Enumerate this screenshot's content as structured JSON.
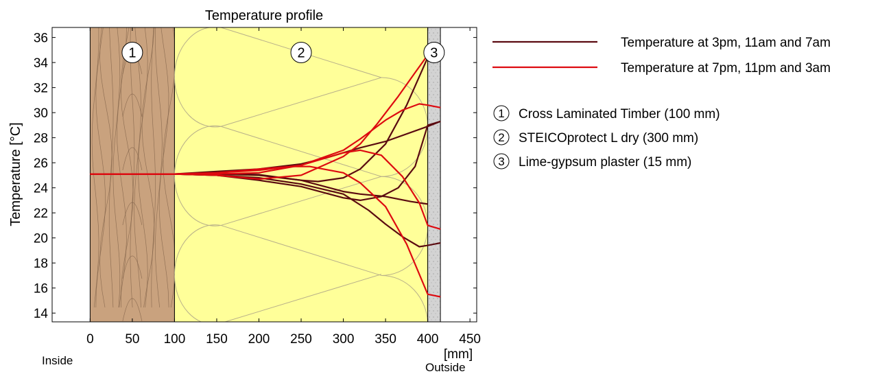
{
  "colors": {
    "timber": "#c9a27e",
    "timber_grain": "#7a5c44",
    "insulation": "#ffff99",
    "insulation_pattern": "#b8b08a",
    "plaster": "#d3d3d3",
    "series_dark": "#5a0a10",
    "series_red": "#dd0a10"
  },
  "chart_data": {
    "type": "line",
    "title": "Temperature profile",
    "ylabel": "Temperature  [°C]",
    "x_unit_label": "[mm]",
    "inside_label": "Inside",
    "outside_label": "Outside",
    "xlim": [
      -45,
      458
    ],
    "ylim": [
      13.3,
      36.8
    ],
    "xticks": [
      0,
      50,
      100,
      150,
      200,
      250,
      300,
      350,
      400,
      450
    ],
    "yticks": [
      14,
      16,
      18,
      20,
      22,
      24,
      26,
      28,
      30,
      32,
      34,
      36
    ],
    "layers": [
      {
        "num": "1",
        "name": "Cross Laminated Timber (100 mm)",
        "from": 0,
        "to": 100,
        "fill": "timber",
        "label_x": 50,
        "label_y": 34.8
      },
      {
        "num": "2",
        "name": "STEICOprotect L dry (300 mm)",
        "from": 100,
        "to": 400,
        "fill": "insulation",
        "label_x": 250,
        "label_y": 34.8
      },
      {
        "num": "3",
        "name": "Lime-gypsum plaster (15 mm)",
        "from": 400,
        "to": 415,
        "fill": "plaster",
        "label_x": 407.5,
        "label_y": 34.8
      }
    ],
    "legend": [
      {
        "label": "Temperature at 3pm, 11am and 7am",
        "color": "series_dark"
      },
      {
        "label": "Temperature at 7pm, 11pm and 3am",
        "color": "series_red"
      }
    ],
    "series": [
      {
        "group": 0,
        "points": [
          [
            0,
            25.1
          ],
          [
            100,
            25.1
          ],
          [
            150,
            25.15
          ],
          [
            200,
            25.05
          ],
          [
            250,
            24.6
          ],
          [
            300,
            23.7
          ],
          [
            320,
            23.5
          ],
          [
            350,
            23.3
          ],
          [
            380,
            22.9
          ],
          [
            400,
            22.7
          ]
        ]
      },
      {
        "group": 0,
        "points": [
          [
            0,
            25.1
          ],
          [
            100,
            25.1
          ],
          [
            150,
            25.3
          ],
          [
            200,
            25.5
          ],
          [
            250,
            25.9
          ],
          [
            280,
            26.4
          ],
          [
            300,
            26.8
          ],
          [
            320,
            27.2
          ],
          [
            350,
            27.7
          ],
          [
            400,
            28.9
          ],
          [
            415,
            29.3
          ]
        ]
      },
      {
        "group": 0,
        "points": [
          [
            0,
            25.1
          ],
          [
            100,
            25.1
          ],
          [
            150,
            25.0
          ],
          [
            200,
            24.8
          ],
          [
            250,
            24.3
          ],
          [
            300,
            23.5
          ],
          [
            330,
            22.2
          ],
          [
            350,
            21.1
          ],
          [
            370,
            20.1
          ],
          [
            390,
            19.3
          ],
          [
            400,
            19.4
          ],
          [
            415,
            19.6
          ]
        ]
      },
      {
        "group": 0,
        "points": [
          [
            0,
            25.1
          ],
          [
            100,
            25.1
          ],
          [
            150,
            25.0
          ],
          [
            200,
            24.6
          ],
          [
            250,
            24.1
          ],
          [
            300,
            23.2
          ],
          [
            320,
            23.0
          ],
          [
            345,
            23.3
          ],
          [
            365,
            24.0
          ],
          [
            385,
            25.7
          ],
          [
            400,
            29.0
          ],
          [
            415,
            29.3
          ]
        ]
      },
      {
        "group": 0,
        "points": [
          [
            0,
            25.1
          ],
          [
            100,
            25.1
          ],
          [
            150,
            25.1
          ],
          [
            200,
            25.0
          ],
          [
            250,
            24.6
          ],
          [
            270,
            24.5
          ],
          [
            300,
            24.8
          ],
          [
            320,
            25.5
          ],
          [
            350,
            27.5
          ],
          [
            375,
            30.6
          ],
          [
            400,
            34.4
          ],
          [
            415,
            34.7
          ]
        ]
      },
      {
        "group": 1,
        "points": [
          [
            0,
            25.1
          ],
          [
            100,
            25.1
          ],
          [
            150,
            25.2
          ],
          [
            200,
            25.4
          ],
          [
            250,
            25.8
          ],
          [
            300,
            26.8
          ],
          [
            320,
            27.0
          ],
          [
            345,
            26.6
          ],
          [
            370,
            24.9
          ],
          [
            390,
            22.8
          ],
          [
            400,
            21.0
          ],
          [
            415,
            20.7
          ]
        ]
      },
      {
        "group": 1,
        "points": [
          [
            0,
            25.1
          ],
          [
            100,
            25.1
          ],
          [
            150,
            25.2
          ],
          [
            200,
            25.5
          ],
          [
            240,
            25.7
          ],
          [
            260,
            25.7
          ],
          [
            300,
            25.2
          ],
          [
            320,
            24.4
          ],
          [
            350,
            22.5
          ],
          [
            375,
            19.5
          ],
          [
            400,
            15.5
          ],
          [
            415,
            15.3
          ]
        ]
      },
      {
        "group": 1,
        "points": [
          [
            0,
            25.1
          ],
          [
            100,
            25.1
          ],
          [
            150,
            25.1
          ],
          [
            200,
            25.2
          ],
          [
            250,
            25.8
          ],
          [
            300,
            27.0
          ],
          [
            320,
            27.9
          ],
          [
            350,
            29.4
          ],
          [
            370,
            30.2
          ],
          [
            390,
            30.7
          ],
          [
            400,
            30.6
          ],
          [
            415,
            30.4
          ]
        ]
      },
      {
        "group": 1,
        "points": [
          [
            0,
            25.1
          ],
          [
            100,
            25.1
          ],
          [
            150,
            25.0
          ],
          [
            200,
            24.7
          ],
          [
            250,
            25.0
          ],
          [
            280,
            25.9
          ],
          [
            300,
            26.5
          ],
          [
            320,
            27.5
          ],
          [
            340,
            29.1
          ],
          [
            365,
            31.3
          ],
          [
            385,
            33.2
          ],
          [
            400,
            34.6
          ],
          [
            415,
            34.8
          ]
        ]
      }
    ]
  }
}
